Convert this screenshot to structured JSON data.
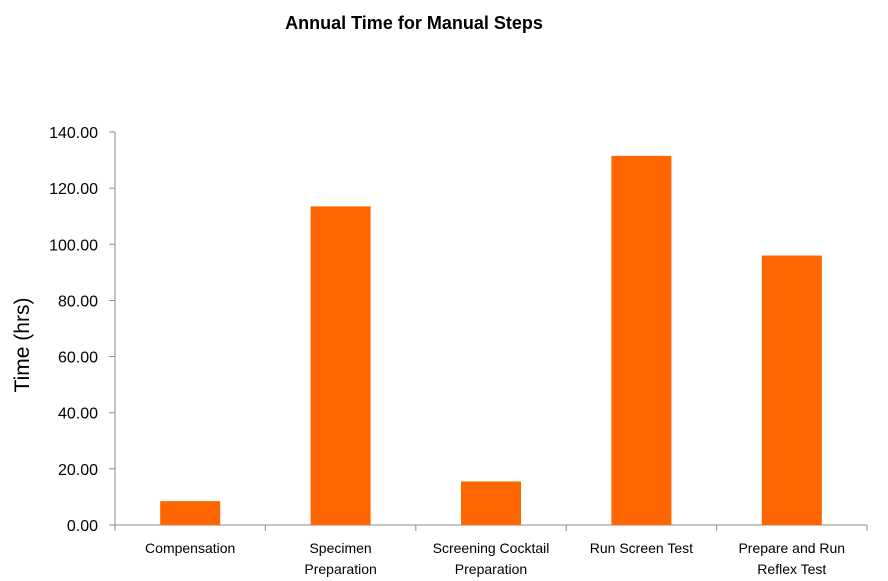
{
  "chart_data": {
    "type": "bar",
    "title": "Annual Time for Manual Steps",
    "xlabel": "",
    "ylabel": "Time (hrs)",
    "ylim": [
      0,
      140
    ],
    "yticks": [
      "0.00",
      "20.00",
      "40.00",
      "60.00",
      "80.00",
      "100.00",
      "120.00",
      "140.00"
    ],
    "categories": [
      [
        "Compensation"
      ],
      [
        "Specimen",
        "Preparation"
      ],
      [
        "Screening Cocktail",
        "Preparation"
      ],
      [
        "Run Screen Test"
      ],
      [
        "Prepare and Run",
        "Reflex Test"
      ]
    ],
    "values": [
      8.5,
      113.5,
      15.5,
      131.5,
      96
    ],
    "bar_color": "#ff6600",
    "axis_color": "#8c8c8c",
    "grid": false,
    "legend": "none"
  }
}
